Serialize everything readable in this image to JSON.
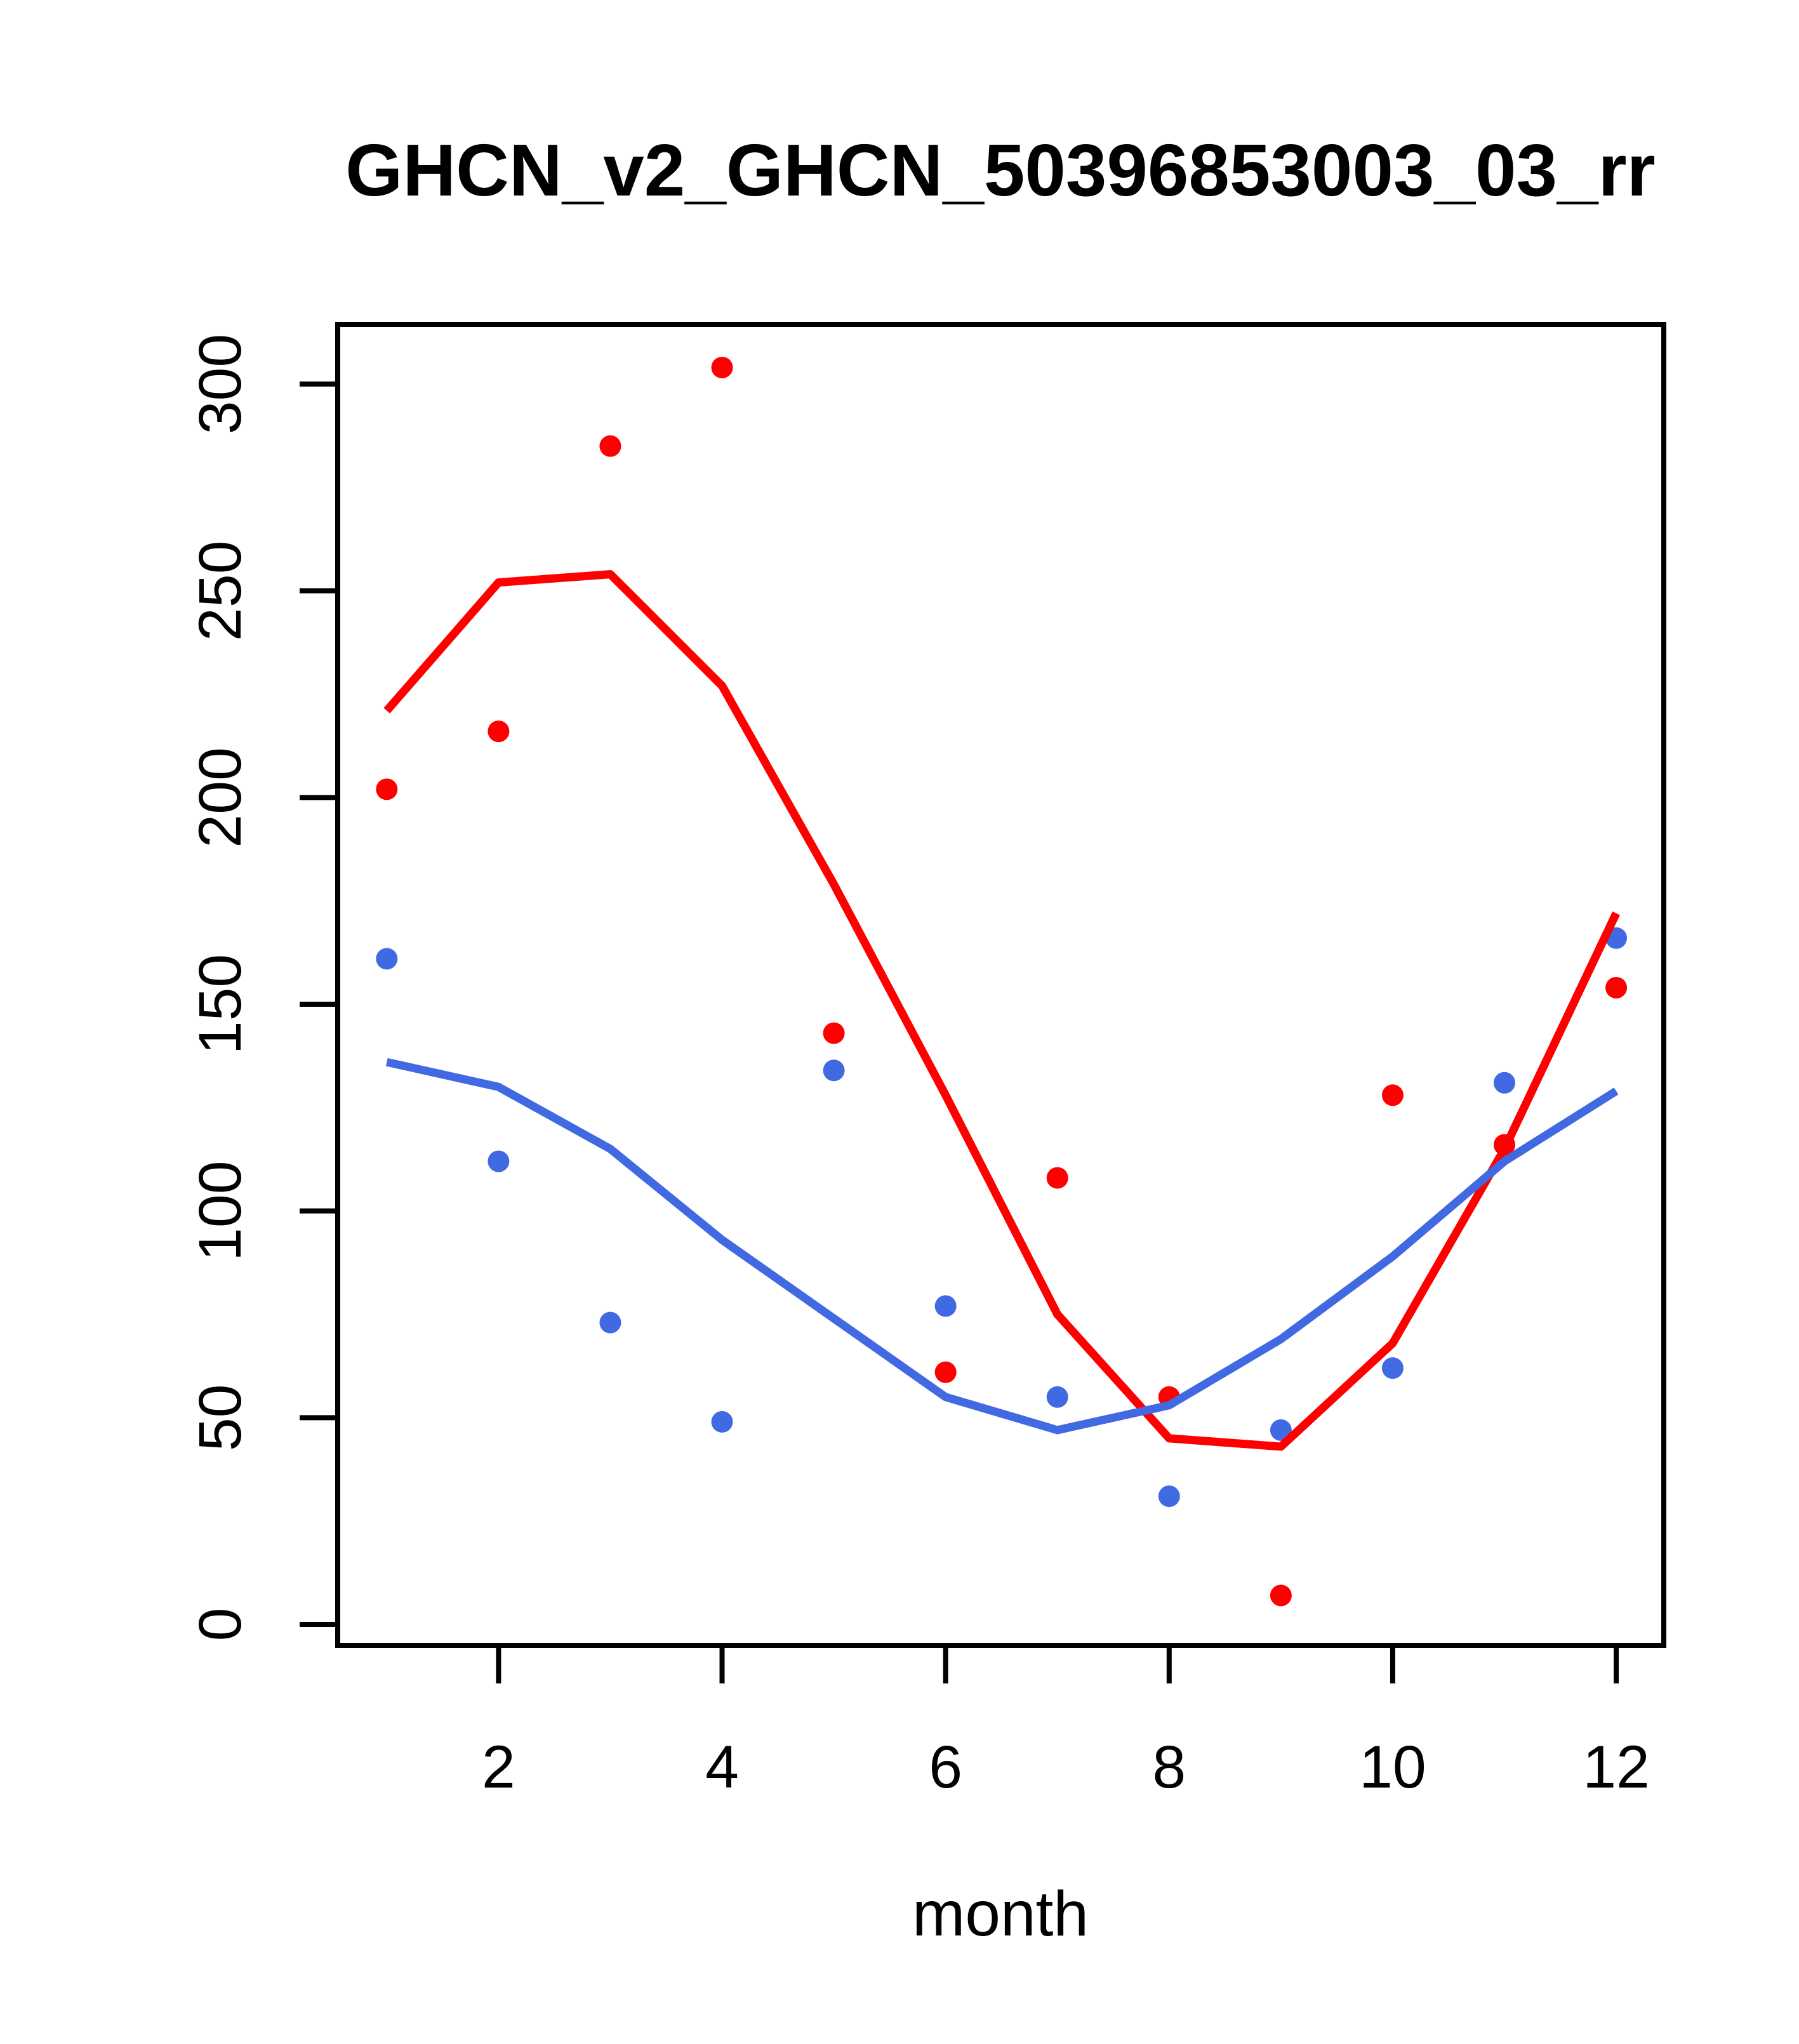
{
  "chart_data": {
    "type": "scatter",
    "title": "GHCN_v2_GHCN_50396853003_03_rr",
    "xlabel": "month",
    "ylabel": "",
    "x": [
      1,
      2,
      3,
      4,
      5,
      6,
      7,
      8,
      9,
      10,
      11,
      12
    ],
    "x_ticks": [
      2,
      4,
      6,
      8,
      10,
      12
    ],
    "y_ticks": [
      0,
      50,
      100,
      150,
      200,
      250,
      300
    ],
    "xlim": [
      0.56,
      12.44
    ],
    "ylim": [
      -5,
      315
    ],
    "grid": false,
    "legend": "none",
    "background": "#ffffff",
    "axis_color": "#000000",
    "series": [
      {
        "name": "red-points",
        "kind": "points",
        "color": "#ff0000",
        "values": [
          202,
          216,
          285,
          304,
          143,
          61,
          108,
          55,
          7,
          128,
          116,
          154
        ]
      },
      {
        "name": "blue-points",
        "kind": "points",
        "color": "#4169e1",
        "values": [
          161,
          112,
          73,
          49,
          134,
          77,
          55,
          31,
          47,
          62,
          131,
          166
        ]
      },
      {
        "name": "red-smooth-line",
        "kind": "line",
        "color": "#ff0000",
        "values": [
          221,
          252,
          254,
          227,
          179,
          128,
          75,
          45,
          43,
          68,
          115,
          172
        ]
      },
      {
        "name": "blue-smooth-line",
        "kind": "line",
        "color": "#4169e1",
        "values": [
          136,
          130,
          115,
          93,
          74,
          55,
          47,
          53,
          69,
          89,
          112,
          129
        ]
      }
    ]
  }
}
